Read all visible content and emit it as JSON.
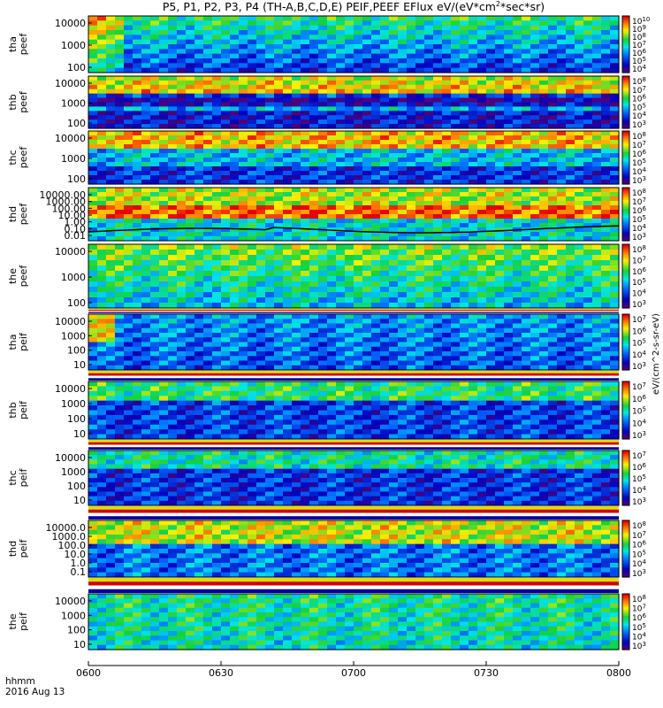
{
  "title": "P5, P1, P2, P3, P4 (TH-A,B,C,D,E) PEIF,PEEF EFlux eV/(eV*cm",
  "title_sup": "2",
  "title_end": "*sec*sr)",
  "footer": {
    "hhmm": "hhmm",
    "date": "2016 Aug 13"
  },
  "chart_data": {
    "type": "heatmap",
    "x_ticks": [
      "0600",
      "0630",
      "0700",
      "0730",
      "0800"
    ],
    "xlim": [
      "0600",
      "0800"
    ],
    "colorbar_label": "eV/(cm^2-s-sr-eV)",
    "panels": [
      {
        "name": "tha peef",
        "ylabel": [
          "tha",
          "peef"
        ],
        "yticks": [
          "10000",
          "1000",
          "100"
        ],
        "cbar_ticks": [
          "10^10",
          "10^9",
          "10^8",
          "10^7",
          "10^6",
          "10^5",
          "10^4"
        ]
      },
      {
        "name": "thb peef",
        "ylabel": [
          "thb",
          "peef"
        ],
        "yticks": [
          "10000",
          "1000",
          "100"
        ],
        "cbar_ticks": [
          "10^8",
          "10^7",
          "10^6",
          "10^5",
          "10^4",
          "10^3"
        ]
      },
      {
        "name": "thc peef",
        "ylabel": [
          "thc",
          "peef"
        ],
        "yticks": [
          "10000",
          "1000",
          "100"
        ],
        "cbar_ticks": [
          "10^8",
          "10^7",
          "10^6",
          "10^5",
          "10^4",
          "10^3"
        ]
      },
      {
        "name": "thd peef",
        "ylabel": [
          "thd",
          "peef"
        ],
        "yticks": [
          "10000.00",
          "1000.00",
          "100.00",
          "10.00",
          "1.00",
          "0.10",
          "0.01"
        ],
        "cbar_ticks": [
          "10^8",
          "10^7",
          "10^6",
          "10^5",
          "10^4",
          "10^3"
        ]
      },
      {
        "name": "the peef",
        "ylabel": [
          "the",
          "peef"
        ],
        "yticks": [
          "10000",
          "1000",
          "100"
        ],
        "cbar_ticks": [
          "10^8",
          "10^7",
          "10^6",
          "10^5",
          "10^4",
          "10^3"
        ]
      },
      {
        "name": "tha peif",
        "ylabel": [
          "tha",
          "peif"
        ],
        "yticks": [
          "10000",
          "1000",
          "100",
          "10"
        ],
        "cbar_ticks": [
          "10^7",
          "10^6",
          "10^5",
          "10^4",
          "10^3"
        ]
      },
      {
        "name": "thb peif",
        "ylabel": [
          "thb",
          "peif"
        ],
        "yticks": [
          "10000",
          "1000",
          "100",
          "10"
        ],
        "cbar_ticks": [
          "10^7",
          "10^6",
          "10^5",
          "10^4",
          "10^3"
        ]
      },
      {
        "name": "thc peif",
        "ylabel": [
          "thc",
          "peif"
        ],
        "yticks": [
          "10000",
          "1000",
          "100",
          "10"
        ],
        "cbar_ticks": [
          "10^7",
          "10^6",
          "10^5",
          "10^4",
          "10^3"
        ]
      },
      {
        "name": "thd peif",
        "ylabel": [
          "thd",
          "peif"
        ],
        "yticks": [
          "10000.0",
          "1000.0",
          "100.0",
          "10.0",
          "1.0",
          "0.1"
        ],
        "cbar_ticks": [
          "10^8",
          "10^7",
          "10^6",
          "10^5",
          "10^4",
          "10^3"
        ]
      },
      {
        "name": "the peif",
        "ylabel": [
          "the",
          "peif"
        ],
        "yticks": [
          "10000",
          "1000",
          "100",
          "10"
        ],
        "cbar_ticks": [
          "10^8",
          "10^7",
          "10^6",
          "10^5",
          "10^4",
          "10^3"
        ]
      }
    ]
  }
}
